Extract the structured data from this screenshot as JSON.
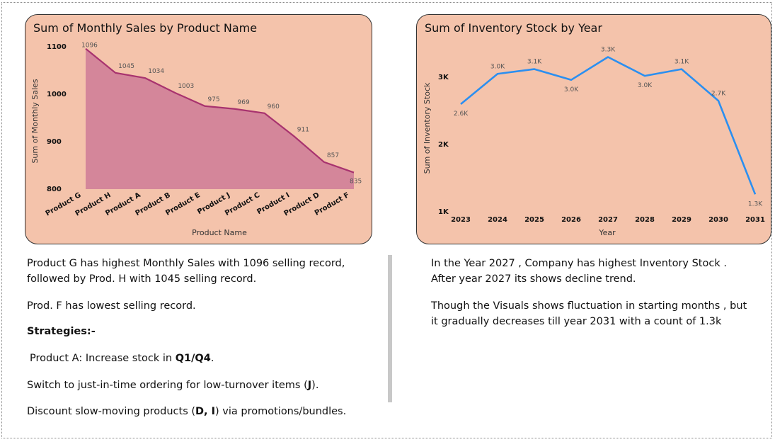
{
  "charts": {
    "sales": {
      "title": "Sum of Monthly Sales by Product Name"
    },
    "inventory": {
      "title": "Sum of Inventory Stock by Year"
    }
  },
  "chart_data": [
    {
      "type": "area",
      "title": "Sum of Monthly Sales by Product Name",
      "xlabel": "Product Name",
      "ylabel": "Sum of Monthly Sales",
      "categories": [
        "Product G",
        "Product H",
        "Product A",
        "Product B",
        "Product E",
        "Product J",
        "Product C",
        "Product I",
        "Product D",
        "Product F"
      ],
      "values": [
        1096,
        1045,
        1034,
        1003,
        975,
        969,
        960,
        911,
        857,
        835
      ],
      "data_labels": [
        "1096",
        "1045",
        "1034",
        "1003",
        "975",
        "969",
        "960",
        "911",
        "857",
        "835"
      ],
      "y_ticks": [
        800,
        900,
        1000,
        1100
      ],
      "ylim": [
        800,
        1100
      ],
      "grid": false,
      "colors": {
        "line": "#a8336f",
        "fill": "#d4869a"
      }
    },
    {
      "type": "line",
      "title": "Sum of Inventory Stock by Year",
      "xlabel": "Year",
      "ylabel": "Sum of Inventory Stock",
      "x": [
        "2023",
        "2024",
        "2025",
        "2026",
        "2027",
        "2028",
        "2029",
        "2030",
        "2031"
      ],
      "values": [
        2600,
        3050,
        3120,
        2960,
        3300,
        3020,
        3120,
        2650,
        1260
      ],
      "data_labels": [
        "2.6K",
        "3.0K",
        "3.1K",
        "3.0K",
        "3.3K",
        "3.0K",
        "3.1K",
        "2.7K",
        "1.3K"
      ],
      "y_ticks": [
        1000,
        2000,
        3000
      ],
      "y_tick_labels": [
        "1K",
        "2K",
        "3K"
      ],
      "ylim": [
        1000,
        3400
      ],
      "grid": false,
      "colors": {
        "line": "#2b8ff0"
      }
    }
  ],
  "notes": {
    "left": {
      "l1": "Product G has highest Monthly Sales with 1096 selling record,",
      "l2": "followed by Prod. H with 1045 selling record.",
      "l3": "Prod. F  has lowest selling record.",
      "strategies": "Strategies:-",
      "s1_pre": "Product A: Increase stock in ",
      "s1_bold": "Q1/Q4",
      "s1_post": ".",
      "s2_pre": "Switch to just-in-time ordering for low-turnover items (",
      "s2_bold": "J",
      "s2_post": ").",
      "s3_pre": "Discount  slow-moving products (",
      "s3_bold": "D, I",
      "s3_post": ") via promotions/bundles."
    },
    "right": {
      "l1": "In the Year 2027 , Company has highest Inventory Stock .",
      "l2": "After year 2027 its shows decline trend.",
      "l3": "Though the Visuals shows fluctuation in starting months , but",
      "l4": "it gradually decreases till year 2031 with a count of 1.3k"
    }
  }
}
